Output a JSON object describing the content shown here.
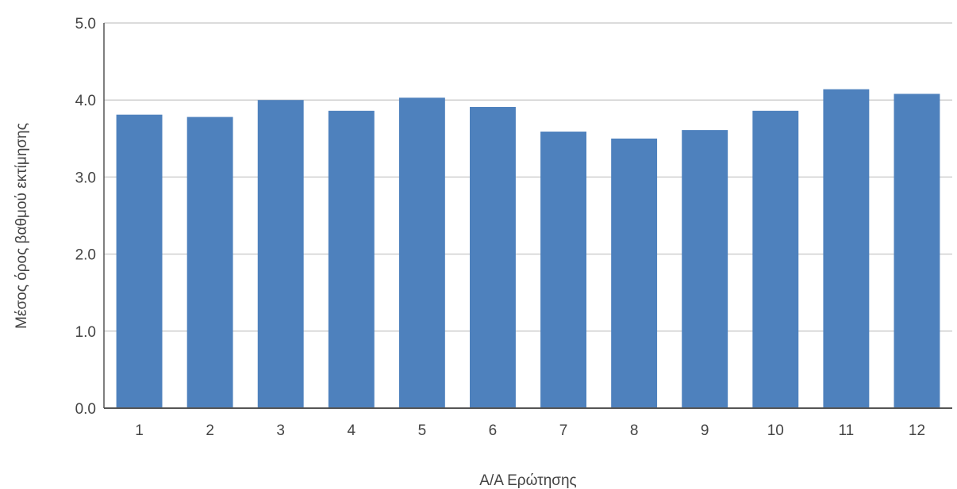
{
  "chart_data": {
    "type": "bar",
    "title": "",
    "xlabel": "Α/Α Ερώτησης",
    "ylabel": "Μέσος όρος βαθμού εκτίμησης",
    "categories": [
      "1",
      "2",
      "3",
      "4",
      "5",
      "6",
      "7",
      "8",
      "9",
      "10",
      "11",
      "12"
    ],
    "values": [
      3.81,
      3.78,
      4.0,
      3.86,
      4.03,
      3.91,
      3.59,
      3.5,
      3.61,
      3.86,
      4.14,
      4.08
    ],
    "ylim": [
      0,
      5
    ],
    "yticks": [
      "0.0",
      "1.0",
      "2.0",
      "3.0",
      "4.0",
      "5.0"
    ],
    "grid": true,
    "legend": "none",
    "bar_color": "#4e81bd",
    "grid_color": "#cfcfcf",
    "axis_color": "#555555"
  }
}
